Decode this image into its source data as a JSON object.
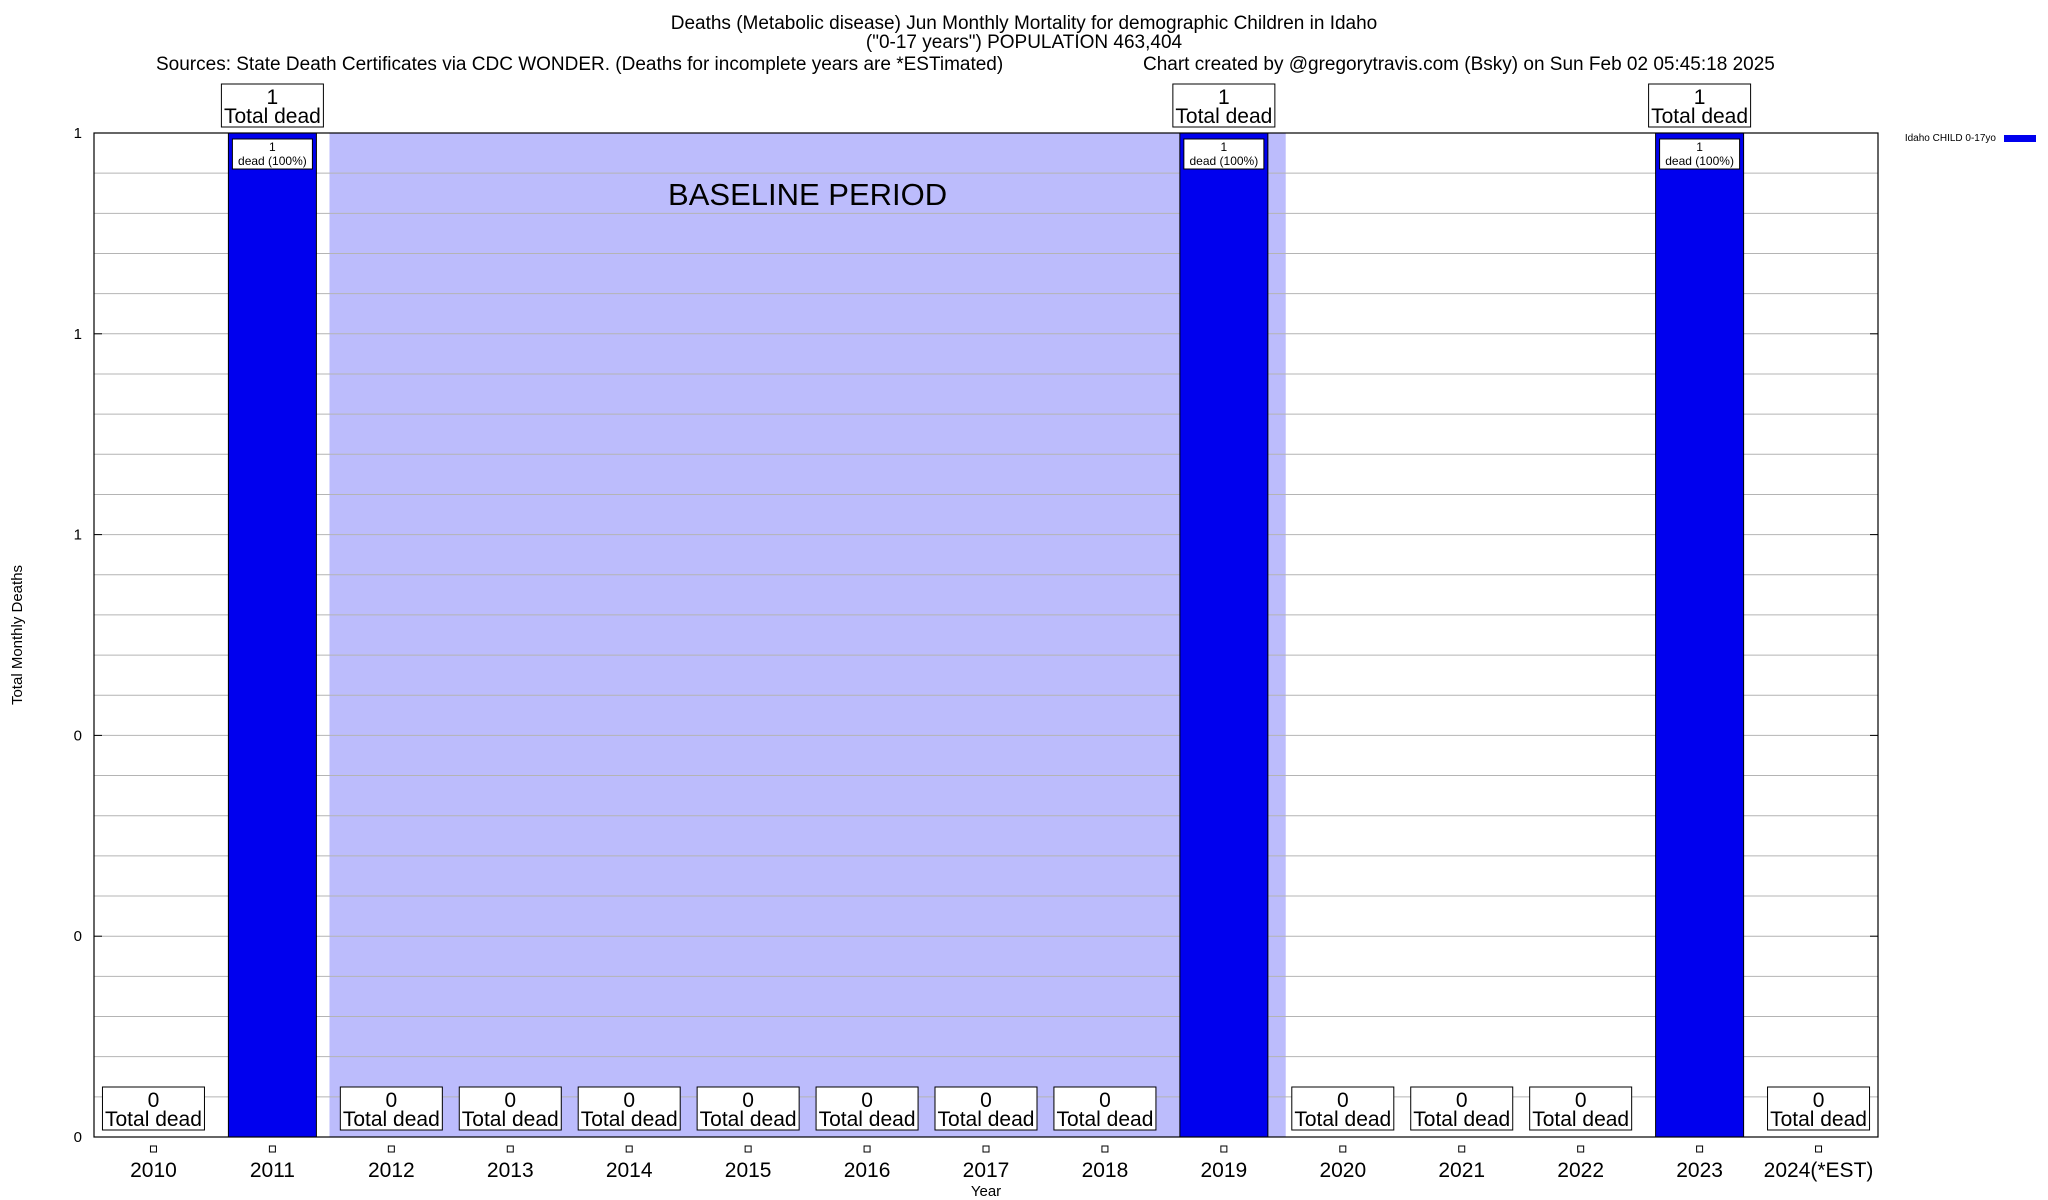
{
  "header": {
    "title_line_1": "Deaths (Metabolic disease) Jun Monthly Mortality for demographic Children in Idaho",
    "title_line_2": "(\"0-17 years\") POPULATION 463,404",
    "sources": "Sources: State Death Certificates via CDC WONDER. (Deaths for incomplete years are *ESTimated)",
    "credit": "Chart created by @gregorytravis.com (Bsky) on Sun Feb 02 05:45:18 2025"
  },
  "chart_data": {
    "type": "bar",
    "xlabel": "Year",
    "ylabel": "Total Monthly Deaths",
    "ylim": [
      0,
      1
    ],
    "y_tick_labels": [
      "0",
      "0",
      "0",
      "1",
      "1",
      "1"
    ],
    "categories": [
      "2010",
      "2011",
      "2012",
      "2013",
      "2014",
      "2015",
      "2016",
      "2017",
      "2018",
      "2019",
      "2020",
      "2021",
      "2022",
      "2023",
      "2024(*EST)"
    ],
    "series": [
      {
        "name": "Idaho CHILD 0-17yo",
        "color": "#0000ee",
        "values": [
          0,
          1,
          0,
          0,
          0,
          0,
          0,
          0,
          0,
          1,
          0,
          0,
          0,
          1,
          0
        ]
      }
    ],
    "total_label": "Total dead",
    "inner_label": "dead (100%)",
    "baseline_label": "BASELINE PERIOD",
    "baseline_start": "2012",
    "baseline_end": "2019",
    "baseline_color": "#bcbcfc",
    "legend_position": "top-right",
    "grid": true
  }
}
